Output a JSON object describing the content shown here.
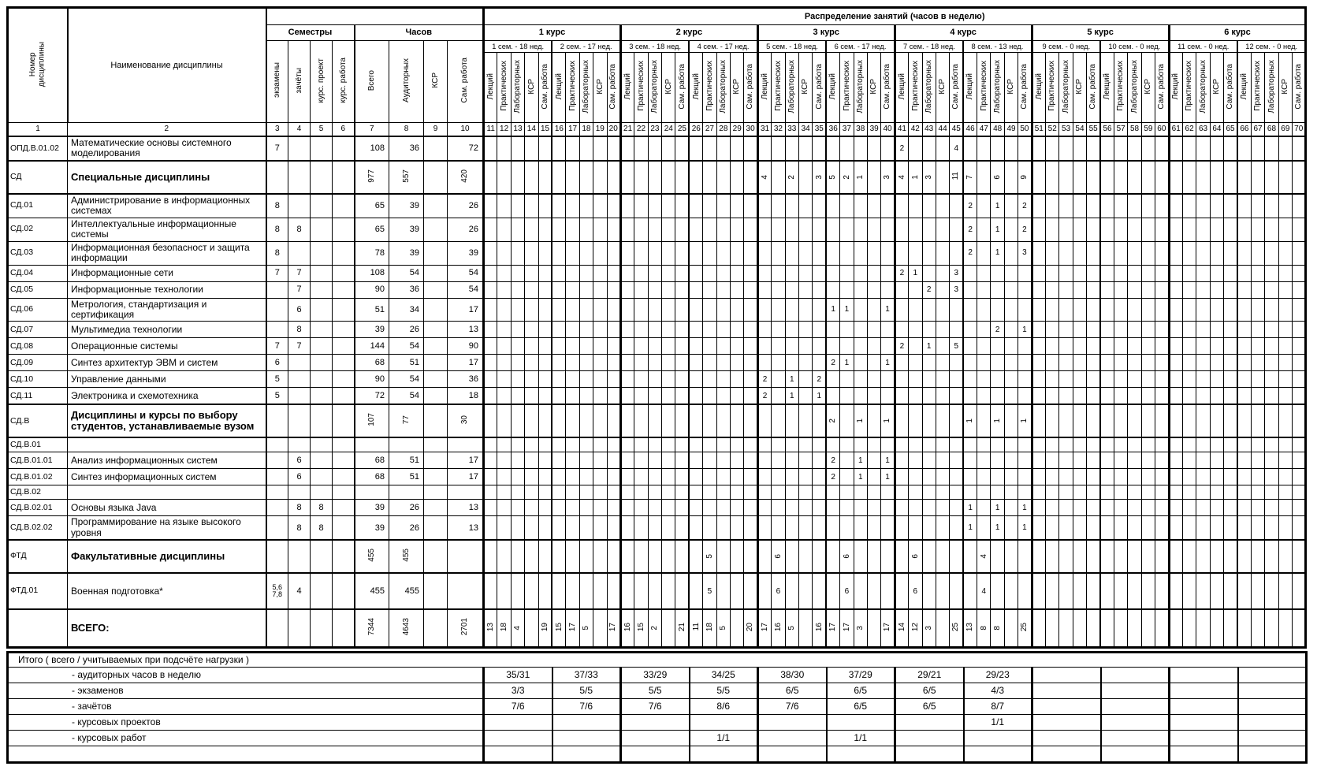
{
  "header": {
    "col1_label": "Номер\nдисциплины",
    "col2_label": "Наименование дисциплины",
    "semestry": "Семестры",
    "chasov": "Часов",
    "raspredelenie": "Распределение занятий (часов в неделю)",
    "sem_cols": [
      "экзамены",
      "зачёты",
      "курс. проект",
      "курс. работа"
    ],
    "hour_cols": [
      "Всего",
      "Аудиторных",
      "КСР",
      "Сам. работа"
    ],
    "week_cols": [
      "Лекций",
      "Практических",
      "Лабораторных",
      "КСР",
      "Сам. работа"
    ],
    "courses": [
      {
        "label": "1 курс",
        "sems": [
          "1 сем. - 18 нед.",
          "2 сем. - 17 нед."
        ]
      },
      {
        "label": "2 курс",
        "sems": [
          "3 сем. - 18 нед.",
          "4 сем. - 17 нед."
        ]
      },
      {
        "label": "3 курс",
        "sems": [
          "5 сем. - 18 нед.",
          "6 сем. - 17 нед."
        ]
      },
      {
        "label": "4 курс",
        "sems": [
          "7 сем. - 18 нед.",
          "8 сем. - 13 нед."
        ]
      },
      {
        "label": "5 курс",
        "sems": [
          "9 сем. - 0 нед.",
          "10 сем. - 0 нед."
        ]
      },
      {
        "label": "6 курс",
        "sems": [
          "11 сем. - 0 нед.",
          "12 сем. - 0 нед."
        ]
      }
    ],
    "col_numbers": [
      "1",
      "2",
      "3",
      "4",
      "5",
      "6",
      "7",
      "8",
      "9",
      "10",
      "11",
      "12",
      "13",
      "14",
      "15",
      "16",
      "17",
      "18",
      "19",
      "20",
      "21",
      "22",
      "23",
      "24",
      "25",
      "26",
      "27",
      "28",
      "29",
      "30",
      "31",
      "32",
      "33",
      "34",
      "35",
      "36",
      "37",
      "38",
      "39",
      "40",
      "41",
      "42",
      "43",
      "44",
      "45",
      "46",
      "47",
      "48",
      "49",
      "50",
      "51",
      "52",
      "53",
      "54",
      "55",
      "56",
      "57",
      "58",
      "59",
      "60",
      "61",
      "62",
      "63",
      "64",
      "65",
      "66",
      "67",
      "68",
      "69",
      "70"
    ]
  },
  "rows": [
    {
      "id": "ОПД.В.01.02",
      "name": "Математические основы системного моделирования",
      "style": "normal",
      "rot": false,
      "sem": [
        "7",
        "",
        "",
        ""
      ],
      "hours": [
        "108",
        "36",
        "",
        "72"
      ],
      "w": {
        "41": "2",
        "45": "4"
      }
    },
    {
      "id": "СД",
      "name": "Специальные дисциплины",
      "style": "section",
      "rot": true,
      "sem": [
        "",
        "",
        "",
        ""
      ],
      "hours": [
        "977",
        "557",
        "",
        "420"
      ],
      "w": {
        "31": "4",
        "33": "2",
        "35": "3",
        "36": "5",
        "37": "2",
        "38": "1",
        "40": "3",
        "41": "4",
        "42": "1",
        "43": "3",
        "45": "11",
        "46": "7",
        "48": "6",
        "50": "9"
      }
    },
    {
      "id": "СД.01",
      "name": "Администрирование в информационных системах",
      "style": "normal",
      "rot": false,
      "sem": [
        "8",
        "",
        "",
        ""
      ],
      "hours": [
        "65",
        "39",
        "",
        "26"
      ],
      "w": {
        "46": "2",
        "48": "1",
        "50": "2"
      }
    },
    {
      "id": "СД.02",
      "name": "Интеллектуальные информационные системы",
      "style": "normal",
      "rot": false,
      "sem": [
        "8",
        "8",
        "",
        ""
      ],
      "hours": [
        "65",
        "39",
        "",
        "26"
      ],
      "w": {
        "46": "2",
        "48": "1",
        "50": "2"
      }
    },
    {
      "id": "СД.03",
      "name": "Информационная безопасност и защита информации",
      "style": "normal",
      "rot": false,
      "sem": [
        "8",
        "",
        "",
        ""
      ],
      "hours": [
        "78",
        "39",
        "",
        "39"
      ],
      "w": {
        "46": "2",
        "48": "1",
        "50": "3"
      }
    },
    {
      "id": "СД.04",
      "name": "Информационные сети",
      "style": "normal",
      "rot": false,
      "sem": [
        "7",
        "7",
        "",
        ""
      ],
      "hours": [
        "108",
        "54",
        "",
        "54"
      ],
      "w": {
        "41": "2",
        "42": "1",
        "45": "3"
      }
    },
    {
      "id": "СД.05",
      "name": "Информационные технологии",
      "style": "normal",
      "rot": false,
      "sem": [
        "",
        "7",
        "",
        ""
      ],
      "hours": [
        "90",
        "36",
        "",
        "54"
      ],
      "w": {
        "43": "2",
        "45": "3"
      }
    },
    {
      "id": "СД.06",
      "name": "Метрология, стандартизация и сертификация",
      "style": "normal",
      "rot": false,
      "sem": [
        "",
        "6",
        "",
        ""
      ],
      "hours": [
        "51",
        "34",
        "",
        "17"
      ],
      "w": {
        "36": "1",
        "37": "1",
        "40": "1"
      }
    },
    {
      "id": "СД.07",
      "name": "Мультимедиа технологии",
      "style": "normal",
      "rot": false,
      "sem": [
        "",
        "8",
        "",
        ""
      ],
      "hours": [
        "39",
        "26",
        "",
        "13"
      ],
      "w": {
        "48": "2",
        "50": "1"
      }
    },
    {
      "id": "СД.08",
      "name": "Операционные системы",
      "style": "normal",
      "rot": false,
      "sem": [
        "7",
        "7",
        "",
        ""
      ],
      "hours": [
        "144",
        "54",
        "",
        "90"
      ],
      "w": {
        "41": "2",
        "43": "1",
        "45": "5"
      }
    },
    {
      "id": "СД.09",
      "name": "Синтез архитектур ЭВМ и систем",
      "style": "normal",
      "rot": false,
      "sem": [
        "6",
        "",
        "",
        ""
      ],
      "hours": [
        "68",
        "51",
        "",
        "17"
      ],
      "w": {
        "36": "2",
        "37": "1",
        "40": "1"
      }
    },
    {
      "id": "СД.10",
      "name": "Управление данными",
      "style": "normal",
      "rot": false,
      "sem": [
        "5",
        "",
        "",
        ""
      ],
      "hours": [
        "90",
        "54",
        "",
        "36"
      ],
      "w": {
        "31": "2",
        "33": "1",
        "35": "2"
      }
    },
    {
      "id": "СД.11",
      "name": "Электроника и схемотехника",
      "style": "normal",
      "rot": false,
      "sem": [
        "5",
        "",
        "",
        ""
      ],
      "hours": [
        "72",
        "54",
        "",
        "18"
      ],
      "w": {
        "31": "2",
        "33": "1",
        "35": "1"
      }
    },
    {
      "id": "СД.В",
      "name": "Дисциплины и курсы по выбору студентов, устанавливаемые вузом",
      "style": "section",
      "rot": true,
      "sem": [
        "",
        "",
        "",
        ""
      ],
      "hours": [
        "107",
        "77",
        "",
        "30"
      ],
      "w": {
        "36": "2",
        "38": "1",
        "40": "1",
        "46": "1",
        "48": "1",
        "50": "1"
      }
    },
    {
      "id": "СД.В.01",
      "name": "",
      "style": "sub",
      "rot": false,
      "sem": [
        "",
        "",
        "",
        ""
      ],
      "hours": [
        "",
        "",
        "",
        ""
      ],
      "w": {}
    },
    {
      "id": "СД.В.01.01",
      "name": "Анализ информационных систем",
      "style": "normal",
      "rot": false,
      "sem": [
        "",
        "6",
        "",
        ""
      ],
      "hours": [
        "68",
        "51",
        "",
        "17"
      ],
      "w": {
        "36": "2",
        "38": "1",
        "40": "1"
      }
    },
    {
      "id": "СД.В.01.02",
      "name": "Синтез информационных систем",
      "style": "normal",
      "rot": false,
      "sem": [
        "",
        "6",
        "",
        ""
      ],
      "hours": [
        "68",
        "51",
        "",
        "17"
      ],
      "w": {
        "36": "2",
        "38": "1",
        "40": "1"
      }
    },
    {
      "id": "СД.В.02",
      "name": "",
      "style": "sub",
      "rot": false,
      "sem": [
        "",
        "",
        "",
        ""
      ],
      "hours": [
        "",
        "",
        "",
        ""
      ],
      "w": {}
    },
    {
      "id": "СД.В.02.01",
      "name": "Основы языка Java",
      "style": "normal",
      "rot": false,
      "sem": [
        "",
        "8",
        "8",
        ""
      ],
      "hours": [
        "39",
        "26",
        "",
        "13"
      ],
      "w": {
        "46": "1",
        "48": "1",
        "50": "1"
      }
    },
    {
      "id": "СД.В.02.02",
      "name": "Программирование на языке высокого уровня",
      "style": "normal",
      "rot": false,
      "sem": [
        "",
        "8",
        "8",
        ""
      ],
      "hours": [
        "39",
        "26",
        "",
        "13"
      ],
      "w": {
        "46": "1",
        "48": "1",
        "50": "1"
      }
    },
    {
      "id": "ФТД",
      "name": "Факультативные дисциплины",
      "style": "section",
      "rot": true,
      "sem": [
        "",
        "",
        "",
        ""
      ],
      "hours": [
        "455",
        "455",
        "",
        ""
      ],
      "w": {
        "27": "5",
        "32": "6",
        "37": "6",
        "42": "6",
        "47": "4"
      }
    },
    {
      "id": "ФТД.01",
      "name": "Военная подготовка*",
      "style": "mil",
      "rot": false,
      "sem": [
        "5,6\n7,8",
        "4",
        "",
        ""
      ],
      "hours": [
        "455",
        "455",
        "",
        ""
      ],
      "w": {
        "27": "5",
        "32": "6",
        "37": "6",
        "42": "6",
        "47": "4"
      }
    },
    {
      "id": "",
      "name": "ВСЕГО:",
      "style": "total",
      "rot": true,
      "sem": [
        "",
        "",
        "",
        ""
      ],
      "hours": [
        "7344",
        "4643",
        "",
        "2701"
      ],
      "w": {
        "11": "13",
        "12": "18",
        "13": "4",
        "15": "19",
        "16": "15",
        "17": "17",
        "18": "5",
        "20": "17",
        "21": "16",
        "22": "15",
        "23": "2",
        "25": "21",
        "26": "11",
        "27": "18",
        "28": "5",
        "30": "20",
        "31": "17",
        "32": "16",
        "33": "5",
        "35": "16",
        "36": "17",
        "37": "17",
        "38": "3",
        "40": "17",
        "41": "14",
        "42": "12",
        "43": "3",
        "45": "25",
        "46": "13",
        "47": "8",
        "48": "8",
        "50": "25"
      }
    }
  ],
  "totals": {
    "title": "Итого ( всего / учитываемых при подсчёте нагрузки )",
    "rows": [
      {
        "label": "- аудиторных часов в неделю",
        "values": [
          "35/31",
          "37/33",
          "33/29",
          "34/25",
          "38/30",
          "37/29",
          "29/21",
          "29/23",
          "",
          "",
          "",
          ""
        ]
      },
      {
        "label": "- экзаменов",
        "values": [
          "3/3",
          "5/5",
          "5/5",
          "5/5",
          "6/5",
          "6/5",
          "6/5",
          "4/3",
          "",
          "",
          "",
          ""
        ]
      },
      {
        "label": "- зачётов",
        "values": [
          "7/6",
          "7/6",
          "7/6",
          "8/6",
          "7/6",
          "6/5",
          "6/5",
          "8/7",
          "",
          "",
          "",
          ""
        ]
      },
      {
        "label": "- курсовых проектов",
        "values": [
          "",
          "",
          "",
          "",
          "",
          "",
          "",
          "1/1",
          "",
          "",
          "",
          ""
        ]
      },
      {
        "label": "- курсовых работ",
        "values": [
          "",
          "",
          "",
          "1/1",
          "",
          "1/1",
          "",
          "",
          "",
          "",
          "",
          ""
        ]
      },
      {
        "label": "",
        "values": [
          "",
          "",
          "",
          "",
          "",
          "",
          "",
          "",
          "",
          "",
          "",
          ""
        ]
      }
    ]
  }
}
